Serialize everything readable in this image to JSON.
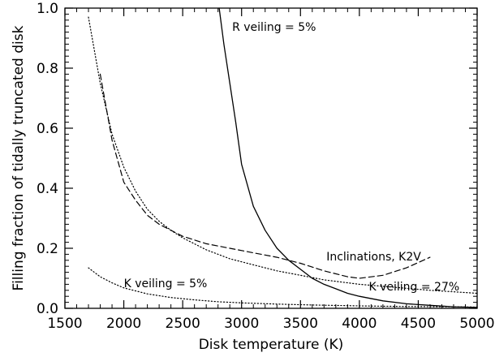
{
  "chart_data": {
    "type": "line",
    "xlabel": "Disk temperature (K)",
    "ylabel": "Filling fraction of tidally truncated disk",
    "xlim": [
      1500,
      5000
    ],
    "ylim": [
      0.0,
      1.0
    ],
    "xticks": [
      1500,
      2000,
      2500,
      3000,
      3500,
      4000,
      4500,
      5000
    ],
    "yticks": [
      0.0,
      0.2,
      0.4,
      0.6,
      0.8,
      1.0
    ],
    "xtick_labels": [
      "1500",
      "2000",
      "2500",
      "3000",
      "3500",
      "4000",
      "4500",
      "5000"
    ],
    "ytick_labels": [
      "0.0",
      "0.2",
      "0.4",
      "0.6",
      "0.8",
      "1.0"
    ],
    "grid": false,
    "series": [
      {
        "name": "R veiling = 5%",
        "style": "solid",
        "x": [
          2810,
          2850,
          2900,
          2950,
          3000,
          3100,
          3200,
          3300,
          3400,
          3500,
          3600,
          3700,
          3800,
          3900,
          4000,
          4200,
          4400,
          4600,
          4800,
          5000
        ],
        "y": [
          1.0,
          0.88,
          0.75,
          0.62,
          0.48,
          0.34,
          0.26,
          0.2,
          0.16,
          0.13,
          0.1,
          0.08,
          0.065,
          0.05,
          0.04,
          0.025,
          0.015,
          0.01,
          0.005,
          0.003
        ]
      },
      {
        "name": "Inclinations, K2V",
        "style": "dashed",
        "x": [
          1800,
          1900,
          2000,
          2100,
          2200,
          2300,
          2400,
          2500,
          2700,
          2900,
          3100,
          3300,
          3500,
          3700,
          3900,
          4000,
          4200,
          4400,
          4600
        ],
        "y": [
          0.78,
          0.56,
          0.42,
          0.36,
          0.31,
          0.28,
          0.26,
          0.24,
          0.215,
          0.2,
          0.185,
          0.17,
          0.15,
          0.125,
          0.105,
          0.1,
          0.11,
          0.135,
          0.17
        ]
      },
      {
        "name": "K veiling = 27%",
        "style": "dotted",
        "x": [
          1700,
          1800,
          1900,
          2000,
          2100,
          2200,
          2300,
          2400,
          2500,
          2700,
          2900,
          3100,
          3300,
          3500,
          3700,
          4000,
          4300,
          4600,
          5000
        ],
        "y": [
          0.97,
          0.75,
          0.58,
          0.47,
          0.39,
          0.33,
          0.29,
          0.26,
          0.235,
          0.195,
          0.165,
          0.145,
          0.125,
          0.11,
          0.095,
          0.08,
          0.07,
          0.06,
          0.05
        ]
      },
      {
        "name": "K veiling = 5%",
        "style": "dotted",
        "x": [
          1700,
          1800,
          1900,
          2000,
          2200,
          2400,
          2600,
          2800,
          3000,
          3300,
          3600,
          4000,
          4400,
          4800,
          5000
        ],
        "y": [
          0.135,
          0.105,
          0.085,
          0.068,
          0.048,
          0.036,
          0.028,
          0.022,
          0.018,
          0.014,
          0.011,
          0.008,
          0.006,
          0.005,
          0.004
        ]
      }
    ],
    "annotations": [
      {
        "text": "R veiling = 5%",
        "x": 2920,
        "y": 0.925
      },
      {
        "text": "Inclinations, K2V",
        "x": 3720,
        "y": 0.16
      },
      {
        "text": "K veiling = 27%",
        "x": 4080,
        "y": 0.06
      },
      {
        "text": "K veiling = 5%",
        "x": 2000,
        "y": 0.07
      }
    ]
  }
}
